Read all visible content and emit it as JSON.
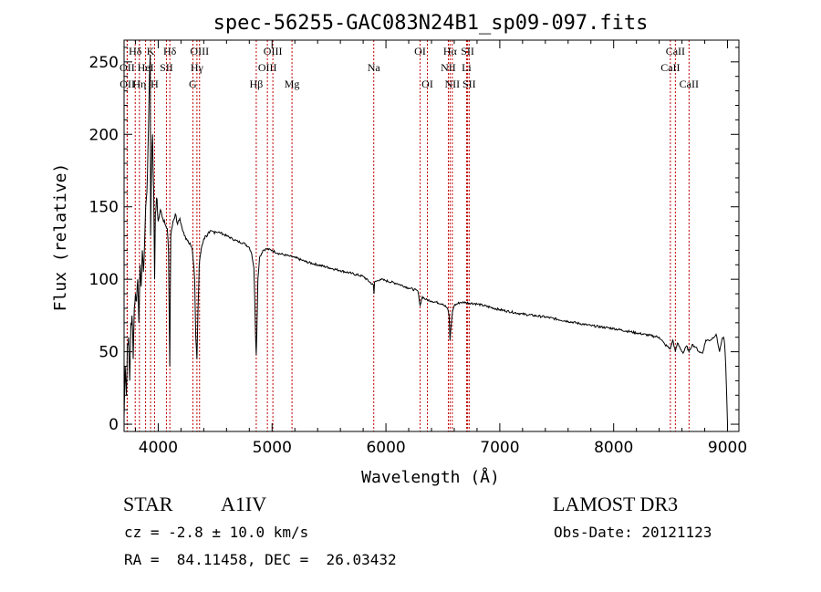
{
  "chart_data": {
    "type": "line",
    "title": "spec-56255-GAC083N24B1_sp09-097.fits",
    "xlabel": "Wavelength (Å)",
    "ylabel": "Flux (relative)",
    "xlim": [
      3700,
      9100
    ],
    "ylim": [
      -5,
      265
    ],
    "xticks": [
      4000,
      5000,
      6000,
      7000,
      8000,
      9000
    ],
    "yticks": [
      0,
      50,
      100,
      150,
      200,
      250
    ],
    "series": [
      {
        "name": "flux",
        "x": [
          3700,
          3710,
          3720,
          3730,
          3740,
          3750,
          3760,
          3770,
          3780,
          3790,
          3800,
          3810,
          3820,
          3830,
          3840,
          3850,
          3860,
          3870,
          3880,
          3890,
          3900,
          3910,
          3920,
          3930,
          3933,
          3940,
          3950,
          3960,
          3968,
          3975,
          3990,
          4000,
          4020,
          4040,
          4060,
          4080,
          4090,
          4101,
          4110,
          4130,
          4150,
          4170,
          4190,
          4210,
          4230,
          4250,
          4280,
          4300,
          4320,
          4330,
          4340,
          4350,
          4360,
          4380,
          4400,
          4420,
          4450,
          4500,
          4550,
          4600,
          4650,
          4700,
          4750,
          4800,
          4820,
          4840,
          4850,
          4855,
          4861,
          4866,
          4875,
          4890,
          4920,
          4950,
          5000,
          5050,
          5100,
          5150,
          5200,
          5300,
          5400,
          5500,
          5600,
          5700,
          5800,
          5890,
          5895,
          5900,
          5950,
          6000,
          6100,
          6200,
          6280,
          6300,
          6320,
          6350,
          6400,
          6500,
          6540,
          6555,
          6563,
          6570,
          6585,
          6600,
          6650,
          6700,
          6800,
          7000,
          7200,
          7400,
          7600,
          7800,
          8000,
          8200,
          8400,
          8450,
          8498,
          8520,
          8542,
          8560,
          8610,
          8640,
          8662,
          8690,
          8720,
          8750,
          8780,
          8810,
          8850,
          8900,
          8930,
          8950,
          8965,
          8975,
          8985,
          9000
        ],
        "y": [
          5,
          40,
          20,
          55,
          60,
          30,
          70,
          75,
          45,
          80,
          90,
          85,
          100,
          70,
          110,
          95,
          120,
          105,
          125,
          150,
          160,
          190,
          230,
          255,
          130,
          175,
          200,
          160,
          100,
          145,
          155,
          140,
          148,
          142,
          138,
          135,
          120,
          40,
          130,
          140,
          145,
          138,
          142,
          135,
          130,
          128,
          125,
          120,
          100,
          60,
          45,
          80,
          110,
          122,
          128,
          130,
          132,
          133,
          132,
          130,
          128,
          126,
          125,
          122,
          118,
          108,
          80,
          60,
          48,
          62,
          100,
          115,
          120,
          121,
          120,
          118,
          117,
          116,
          115,
          112,
          110,
          108,
          106,
          104,
          102,
          96,
          90,
          98,
          100,
          99,
          97,
          94,
          92,
          82,
          88,
          86,
          85,
          83,
          80,
          75,
          58,
          66,
          78,
          82,
          84,
          84,
          83,
          79,
          76,
          74,
          71,
          68,
          66,
          63,
          60,
          55,
          52,
          58,
          50,
          56,
          49,
          54,
          50,
          55,
          53,
          50,
          49,
          58,
          58,
          62,
          50,
          58,
          60,
          55,
          40,
          0
        ]
      }
    ],
    "lines": [
      {
        "label": "Hδ",
        "w": 3798,
        "row": 1
      },
      {
        "label": "OII",
        "w": 3727,
        "row": 2
      },
      {
        "label": "OII",
        "w": 3729,
        "row": 3
      },
      {
        "label": "K",
        "w": 3933,
        "row": 1
      },
      {
        "label": "HeI",
        "w": 3889,
        "row": 2
      },
      {
        "label": "Hη",
        "w": 3835,
        "row": 3
      },
      {
        "label": "Hδ",
        "w": 4102,
        "row": 1
      },
      {
        "label": "SII",
        "w": 4072,
        "row": 2
      },
      {
        "label": "H",
        "w": 3968,
        "row": 3
      },
      {
        "label": "OIII",
        "w": 4363,
        "row": 1
      },
      {
        "label": "Hγ",
        "w": 4340,
        "row": 2
      },
      {
        "label": "G",
        "w": 4304,
        "row": 3
      },
      {
        "label": "OIII",
        "w": 5007,
        "row": 1
      },
      {
        "label": "OIII",
        "w": 4959,
        "row": 2
      },
      {
        "label": "Hβ",
        "w": 4861,
        "row": 3
      },
      {
        "label": "Mg",
        "w": 5175,
        "row": 3
      },
      {
        "label": "Na",
        "w": 5893,
        "row": 2
      },
      {
        "label": "OI",
        "w": 6300,
        "row": 1
      },
      {
        "label": "OI",
        "w": 6364,
        "row": 3
      },
      {
        "label": "Hα",
        "w": 6563,
        "row": 1
      },
      {
        "label": "NII",
        "w": 6548,
        "row": 2
      },
      {
        "label": "NII",
        "w": 6583,
        "row": 3
      },
      {
        "label": "SII",
        "w": 6717,
        "row": 1
      },
      {
        "label": "Li",
        "w": 6708,
        "row": 2
      },
      {
        "label": "SII",
        "w": 6731,
        "row": 3
      },
      {
        "label": "CaII",
        "w": 8542,
        "row": 1
      },
      {
        "label": "CaII",
        "w": 8498,
        "row": 2
      },
      {
        "label": "CaII",
        "w": 8662,
        "row": 3
      }
    ]
  },
  "info": {
    "object_class": "STAR",
    "subclass": "A1IV",
    "survey": "LAMOST DR3",
    "cz": "cz = -2.8 ± 10.0 km/s",
    "obs_date": "Obs-Date: 20121123",
    "coords": "RA =  84.11458, DEC =  26.03432"
  }
}
